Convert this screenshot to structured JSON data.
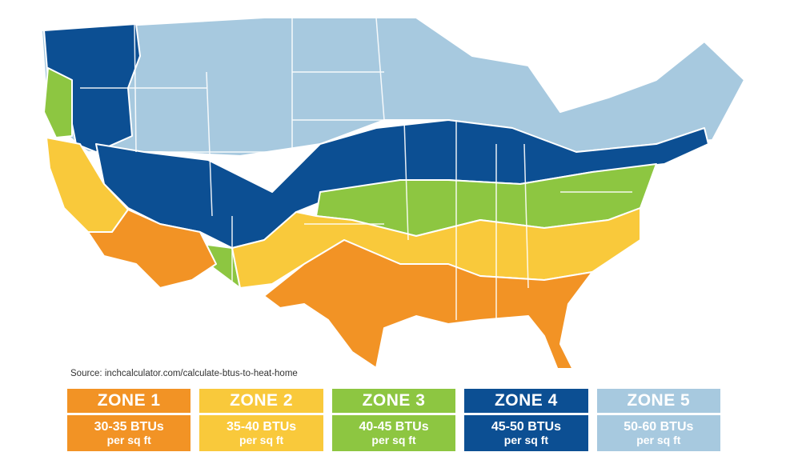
{
  "source": "Source: inchcalculator.com/calculate-btus-to-heat-home",
  "colors": {
    "zone1": "#f29325",
    "zone2": "#f9c93b",
    "zone3": "#8dc641",
    "zone4": "#0c4f93",
    "zone5": "#a7c9df"
  },
  "zones": [
    {
      "name": "ZONE 1",
      "btu": "30-35 BTUs",
      "per": "per sq ft"
    },
    {
      "name": "ZONE 2",
      "btu": "35-40 BTUs",
      "per": "per sq ft"
    },
    {
      "name": "ZONE 3",
      "btu": "40-45 BTUs",
      "per": "per sq ft"
    },
    {
      "name": "ZONE 4",
      "btu": "45-50 BTUs",
      "per": "per sq ft"
    },
    {
      "name": "ZONE 5",
      "btu": "50-60 BTUs",
      "per": "per sq ft"
    }
  ]
}
